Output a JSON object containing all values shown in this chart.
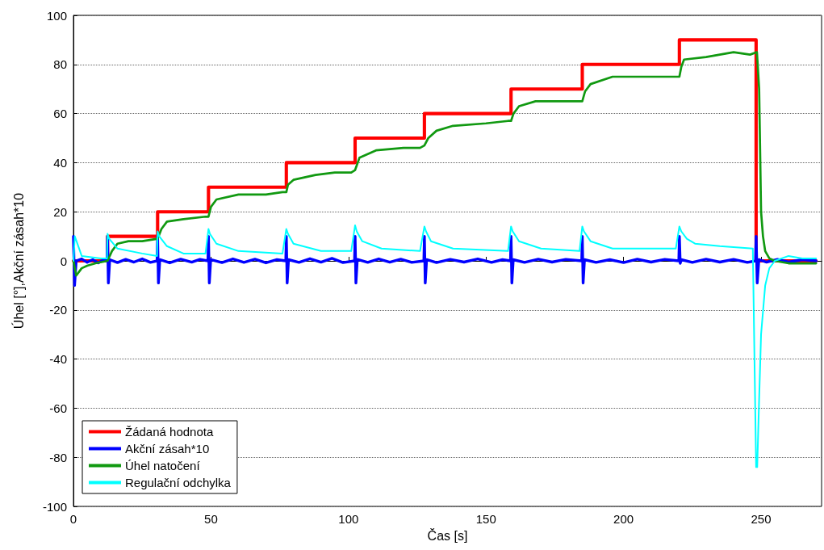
{
  "chart_data": {
    "type": "line",
    "xlabel": "Čas [s]",
    "ylabel": "Úhel [°],Akční zásah*10",
    "xlim": [
      0,
      272
    ],
    "xticks": [
      0,
      50,
      100,
      150,
      200,
      250
    ],
    "ylim": [
      -100,
      100
    ],
    "yticks": [
      -100,
      -80,
      -60,
      -40,
      -20,
      0,
      20,
      40,
      60,
      80,
      100
    ],
    "grid": "y",
    "legend": "bottom left",
    "marker": "none",
    "line_style": "solid",
    "series": [
      {
        "name": "Žádaná hodnota",
        "color": "#ff0000",
        "x": [
          0,
          12.4,
          12.4,
          30.6,
          30.6,
          49.1,
          49.1,
          77.4,
          77.4,
          102.4,
          102.4,
          127.6,
          127.6,
          159.1,
          159.1,
          185,
          185,
          220.3,
          220.3,
          248.2,
          248.2,
          270
        ],
        "values": [
          0,
          0,
          10,
          10,
          20,
          20,
          30,
          30,
          40,
          40,
          50,
          50,
          60,
          60,
          70,
          70,
          80,
          80,
          90,
          90,
          0,
          0
        ]
      },
      {
        "name": "Akční zásah*10",
        "color": "#0000ff",
        "x": [
          0,
          0.4,
          1,
          3,
          5,
          7,
          9,
          11,
          12.2,
          12.4,
          12.7,
          13.2,
          16,
          19,
          22,
          25,
          28,
          30.4,
          30.6,
          30.9,
          31.4,
          35,
          39,
          43,
          46,
          48.9,
          49.1,
          49.4,
          49.9,
          54,
          58,
          62,
          66,
          70,
          74,
          77.2,
          77.4,
          77.7,
          78.2,
          82,
          86,
          90,
          94,
          98,
          102.2,
          102.4,
          102.7,
          103.2,
          107,
          111,
          115,
          119,
          123,
          127.4,
          127.6,
          127.9,
          128.4,
          132,
          137,
          142,
          147,
          152,
          156,
          158.9,
          159.1,
          159.4,
          159.9,
          164,
          169,
          174,
          179,
          184.8,
          185,
          185.3,
          185.8,
          190,
          195,
          200,
          205,
          210,
          215,
          220.1,
          220.3,
          220.6,
          221,
          225,
          230,
          235,
          240,
          245,
          248,
          248.2,
          248.6,
          249.2,
          252,
          256,
          260,
          265,
          270
        ],
        "values": [
          10,
          -10,
          0,
          0.8,
          -0.6,
          0.5,
          -0.8,
          0.4,
          0,
          10,
          -9,
          0.5,
          -0.7,
          0.6,
          -0.5,
          0.8,
          -0.6,
          0,
          10,
          -9,
          0.5,
          -0.8,
          0.7,
          -0.5,
          0.6,
          0,
          10,
          -9,
          0.5,
          -0.7,
          0.8,
          -0.6,
          0.7,
          -0.8,
          0.5,
          0,
          10,
          -9,
          0.5,
          -0.6,
          0.9,
          -0.5,
          1,
          -0.7,
          0,
          10,
          -9,
          0.6,
          -0.6,
          0.8,
          -0.5,
          0.7,
          -0.6,
          0,
          10,
          -9,
          0.5,
          -0.7,
          0.6,
          -0.5,
          0.8,
          -0.6,
          0.5,
          0,
          10,
          -9,
          0.5,
          -0.6,
          0.7,
          -0.5,
          0.6,
          0,
          10,
          -9,
          0.5,
          -0.6,
          0.5,
          -0.7,
          0.7,
          -0.5,
          0.6,
          0,
          10,
          -1,
          0.5,
          -0.6,
          0.7,
          -0.5,
          0.6,
          -0.6,
          0,
          10,
          -9,
          0.5,
          -0.5,
          0.6,
          -0.5,
          0.5,
          0
        ]
      },
      {
        "name": "Úhel natočení",
        "color": "#119911",
        "x": [
          0,
          1,
          3,
          5,
          8,
          12.4,
          14,
          16,
          20,
          25,
          30.6,
          32,
          34,
          40,
          48,
          49.1,
          50,
          52,
          60,
          70,
          76,
          77.4,
          78,
          80,
          88,
          95,
          101,
          102.4,
          104,
          110,
          120,
          126,
          127.6,
          129,
          132,
          138,
          150,
          158,
          159.1,
          160,
          162,
          168,
          184,
          185,
          186,
          188,
          196,
          210,
          219,
          220.3,
          221,
          222,
          230,
          240,
          246,
          248.5,
          249.3,
          250,
          250.7,
          251.5,
          253,
          255,
          260,
          265,
          270
        ],
        "values": [
          0,
          -6,
          -3,
          -2,
          -1,
          0,
          4,
          7,
          8,
          8,
          9,
          13,
          16,
          17,
          18,
          18,
          22,
          25,
          27,
          27,
          28,
          28,
          31,
          33,
          35,
          36,
          36,
          37,
          42,
          45,
          46,
          46,
          47,
          50,
          53,
          55,
          56,
          57,
          57,
          60,
          63,
          65,
          65,
          65,
          69,
          72,
          75,
          75,
          75,
          75,
          79,
          82,
          83,
          85,
          84,
          85,
          70,
          20,
          10,
          4,
          1,
          0,
          -1,
          -1,
          -1
        ]
      },
      {
        "name": "Regulační odchylka",
        "color": "#00ffff",
        "x": [
          0,
          0.5,
          3,
          10,
          12.2,
          12.4,
          13,
          16,
          25,
          30.4,
          30.6,
          31.2,
          34,
          40,
          48,
          49.1,
          49.6,
          52,
          60,
          76,
          77.4,
          78,
          80,
          90,
          101,
          102.4,
          103,
          105,
          112,
          126,
          127.6,
          128.2,
          130,
          138,
          158,
          159.1,
          159.7,
          162,
          170,
          184,
          185,
          185.6,
          188,
          196,
          219,
          220.3,
          221,
          223,
          226,
          235,
          247,
          248.2,
          248.6,
          249.2,
          250,
          251.5,
          253,
          255,
          260,
          265,
          270
        ],
        "values": [
          0,
          10,
          2,
          1,
          1,
          11,
          9,
          5,
          3,
          2,
          12,
          10,
          6,
          3,
          3,
          13,
          11,
          7,
          4,
          3,
          13,
          11,
          7,
          4,
          4,
          14.5,
          12,
          8,
          5,
          4,
          14,
          12,
          8,
          5,
          4,
          14,
          12,
          8,
          5,
          4,
          14,
          12,
          8,
          5,
          5,
          14,
          12,
          9,
          7,
          6,
          5,
          -84,
          -84,
          -60,
          -30,
          -10,
          -3,
          0,
          2,
          1,
          1
        ]
      }
    ]
  }
}
